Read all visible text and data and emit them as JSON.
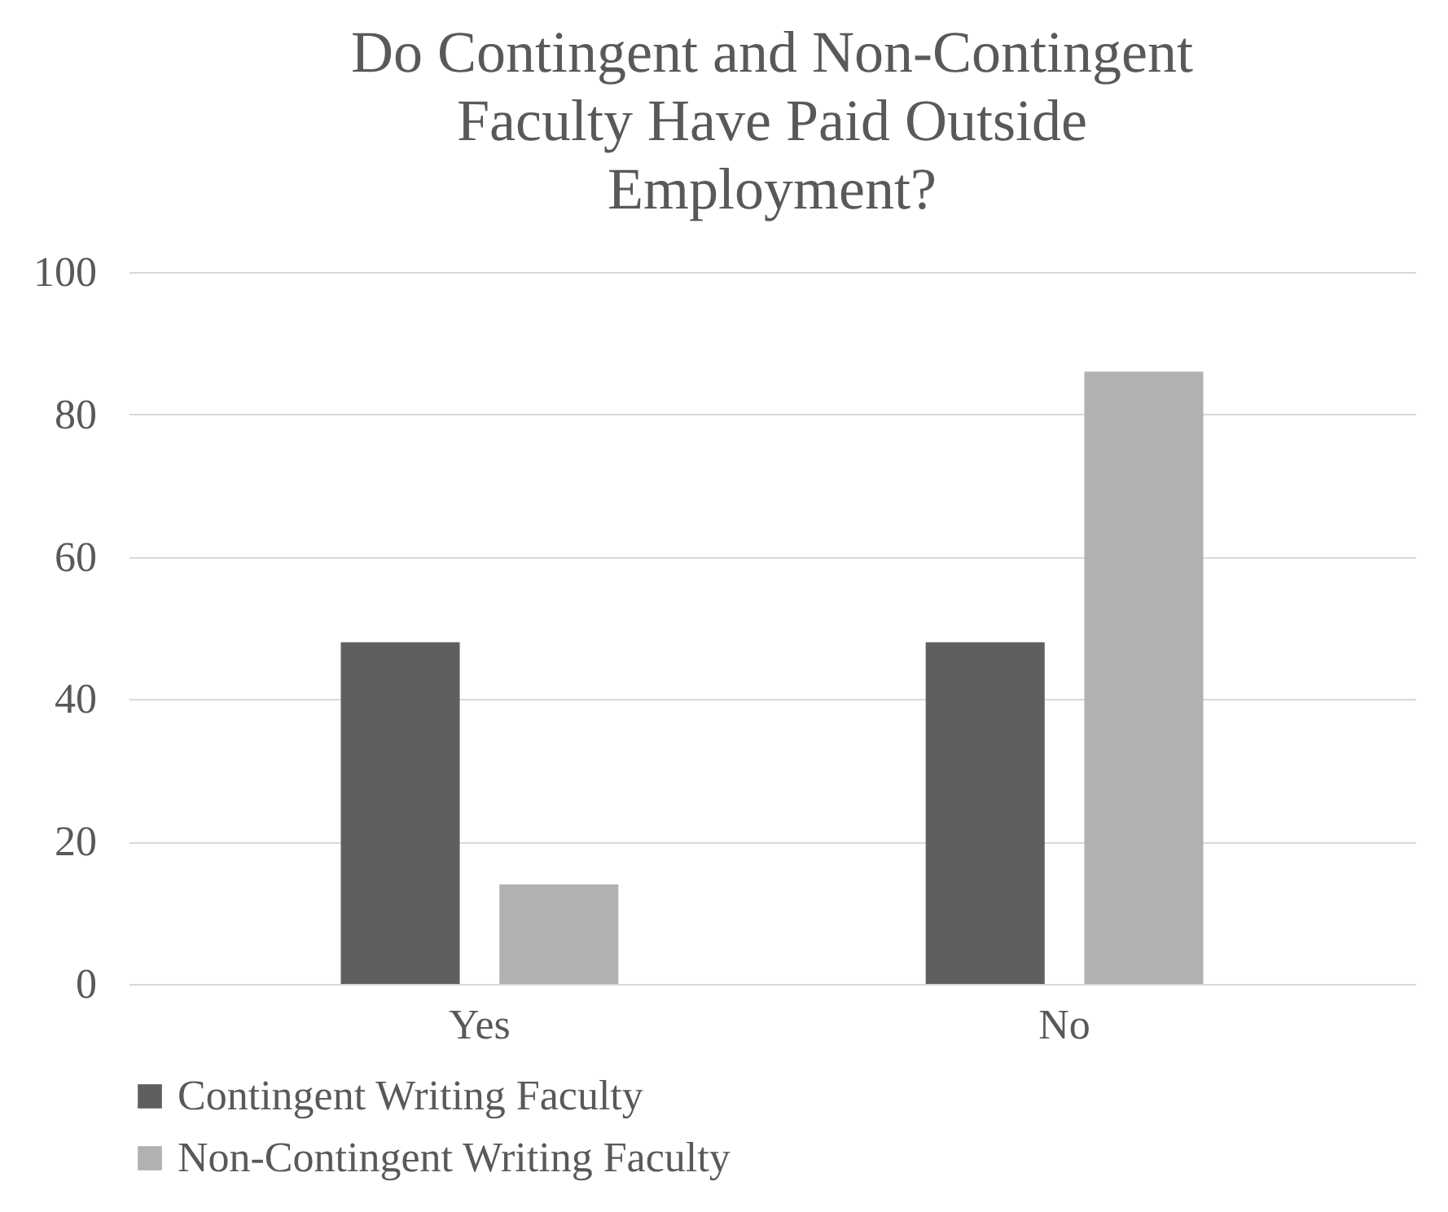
{
  "chart_data": {
    "type": "bar",
    "title": "Do Contingent and Non-Contingent Faculty Have Paid Outside Employment?",
    "categories": [
      "Yes",
      "No"
    ],
    "series": [
      {
        "name": "Contingent Writing Faculty",
        "color": "#5f5f5f",
        "values": [
          48,
          48
        ]
      },
      {
        "name": "Non-Contingent Writing Faculty",
        "color": "#b1b1b1",
        "values": [
          14,
          86
        ]
      }
    ],
    "ylim": [
      0,
      100
    ],
    "yticks": [
      0,
      20,
      40,
      60,
      80,
      100
    ],
    "grid": "y",
    "legend": "bottom"
  }
}
